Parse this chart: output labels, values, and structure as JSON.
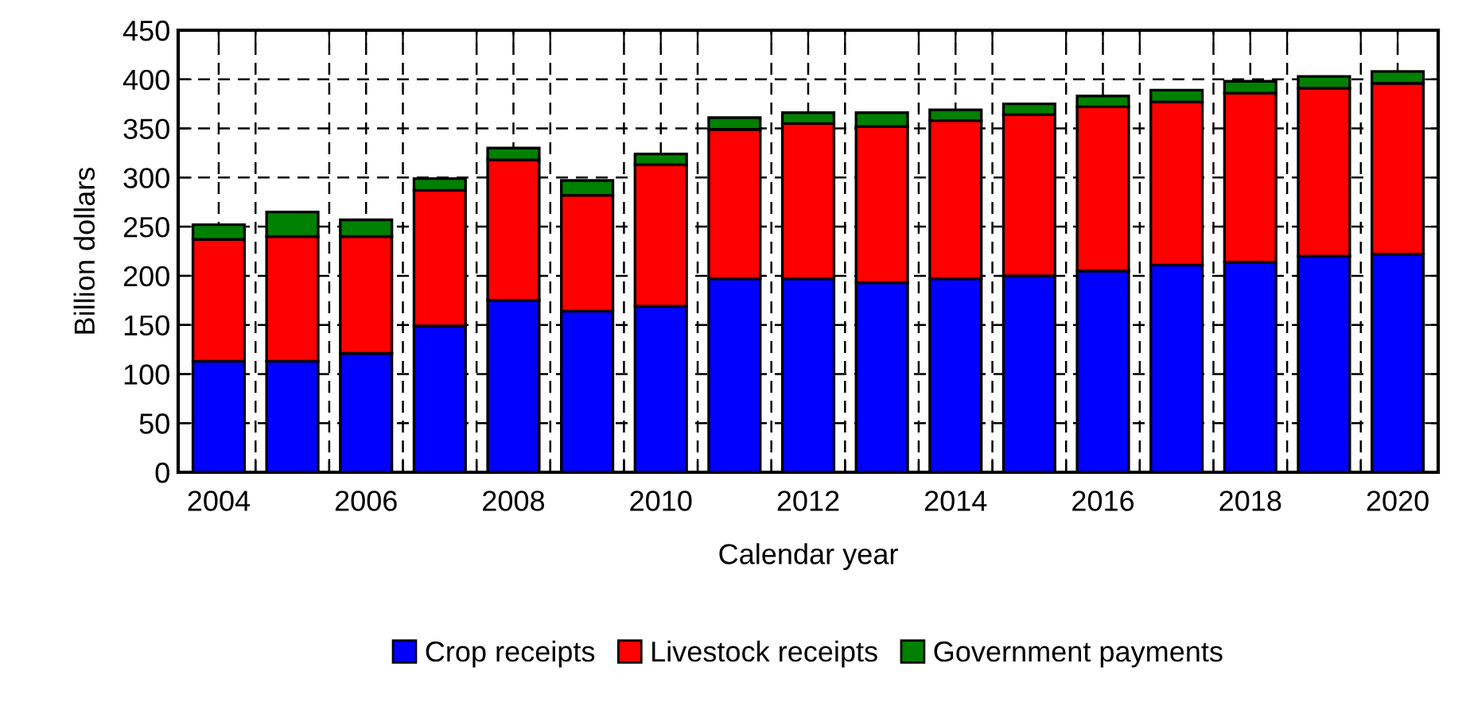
{
  "chart_data": {
    "type": "bar",
    "stacked": true,
    "xlabel": "Calendar year",
    "ylabel": "Billion dollars",
    "x": [
      2004,
      2005,
      2006,
      2007,
      2008,
      2009,
      2010,
      2011,
      2012,
      2013,
      2014,
      2015,
      2016,
      2017,
      2018,
      2019,
      2020
    ],
    "series": [
      {
        "name": "Crop receipts",
        "color": "#0000ff",
        "values": [
          113,
          113,
          121,
          149,
          175,
          164,
          169,
          197,
          197,
          193,
          197,
          200,
          205,
          211,
          214,
          220,
          222
        ]
      },
      {
        "name": "Livestock receipts",
        "color": "#ff0000",
        "values": [
          124,
          127,
          119,
          138,
          143,
          118,
          144,
          152,
          158,
          159,
          161,
          164,
          167,
          166,
          172,
          171,
          174
        ]
      },
      {
        "name": "Government payments",
        "color": "#008000",
        "values": [
          15,
          25,
          17,
          12,
          12,
          15,
          11,
          12,
          11,
          14,
          11,
          11,
          11,
          12,
          12,
          12,
          12
        ]
      }
    ],
    "xlim": [
      2003.45,
      2020.55
    ],
    "xticks": [
      2004,
      2006,
      2008,
      2010,
      2012,
      2014,
      2016,
      2018,
      2020,
      {
        "value": 2004.5,
        "label": null
      },
      {
        "value": 2005.5,
        "label": null
      },
      {
        "value": 2006.5,
        "label": null
      },
      {
        "value": 2007.5,
        "label": null
      },
      {
        "value": 2008.5,
        "label": null
      },
      {
        "value": 2009.5,
        "label": null
      },
      {
        "value": 2010.5,
        "label": null
      },
      {
        "value": 2011.5,
        "label": null
      },
      {
        "value": 2012.5,
        "label": null
      },
      {
        "value": 2013.5,
        "label": null
      },
      {
        "value": 2014.5,
        "label": null
      },
      {
        "value": 2015.5,
        "label": null
      },
      {
        "value": 2016.5,
        "label": null
      },
      {
        "value": 2017.5,
        "label": null
      },
      {
        "value": 2018.5,
        "label": null
      },
      {
        "value": 2019.5,
        "label": null
      }
    ],
    "ylim": [
      0,
      450
    ],
    "yticks": [
      0,
      50,
      100,
      150,
      200,
      250,
      300,
      350,
      400,
      450
    ],
    "grid": true,
    "legend": "bottom"
  }
}
